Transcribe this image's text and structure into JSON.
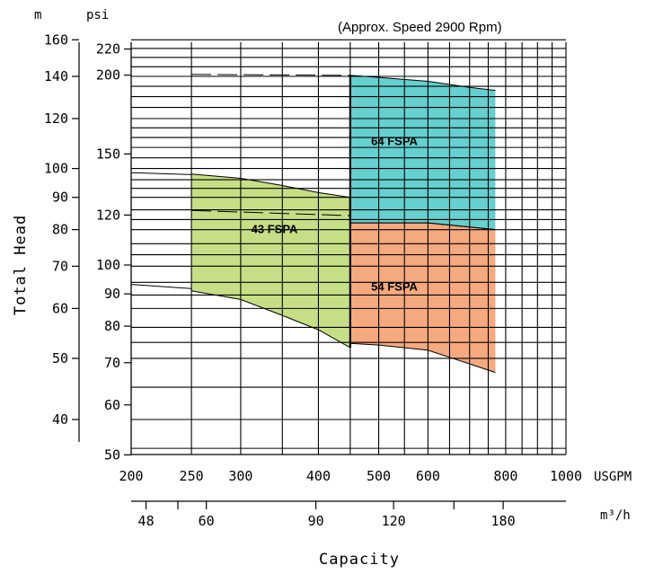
{
  "chart_data": {
    "type": "area",
    "note": "(Approx. Speed 2900 Rpm)",
    "xlabel": "Capacity",
    "ylabel": "Total Head",
    "x_unit_primary": "USGPM",
    "x_unit_secondary": "m³/h",
    "y_unit_primary": "m",
    "y_unit_secondary": "psi",
    "x_scale": "log",
    "y_scale": "log",
    "xlim": [
      200,
      1000
    ],
    "ylim_m": [
      35,
      160
    ],
    "grid": true,
    "x_ticks_usgpm": [
      {
        "value": 200,
        "label": "200"
      },
      {
        "value": 250,
        "label": "250"
      },
      {
        "value": 300,
        "label": "300"
      },
      {
        "value": 400,
        "label": "400"
      },
      {
        "value": 500,
        "label": "500"
      },
      {
        "value": 600,
        "label": "600"
      },
      {
        "value": 800,
        "label": "800"
      },
      {
        "value": 1000,
        "label": "1000"
      }
    ],
    "x_ticks_m3h": [
      {
        "value": 48,
        "label": "48"
      },
      {
        "value": 60,
        "label": "60"
      },
      {
        "value": 90,
        "label": "90"
      },
      {
        "value": 120,
        "label": "120"
      },
      {
        "value": 180,
        "label": "180"
      }
    ],
    "x_minor_m3h": [
      48,
      54,
      60,
      90,
      120,
      150,
      180
    ],
    "y_ticks_m": [
      {
        "value": 160,
        "label": "160"
      },
      {
        "value": 140,
        "label": "140"
      },
      {
        "value": 120,
        "label": "120"
      },
      {
        "value": 100,
        "label": "100"
      },
      {
        "value": 90,
        "label": "90"
      },
      {
        "value": 80,
        "label": "80"
      },
      {
        "value": 70,
        "label": "70"
      },
      {
        "value": 60,
        "label": "60"
      },
      {
        "value": 50,
        "label": "50"
      },
      {
        "value": 40,
        "label": "40"
      }
    ],
    "y_ticks_psi": [
      {
        "value": 220,
        "label": "220"
      },
      {
        "value": 200,
        "label": "200"
      },
      {
        "value": 150,
        "label": "150"
      },
      {
        "value": 120,
        "label": "120"
      },
      {
        "value": 100,
        "label": "100"
      },
      {
        "value": 90,
        "label": "90"
      },
      {
        "value": 80,
        "label": "80"
      },
      {
        "value": 70,
        "label": "70"
      },
      {
        "value": 60,
        "label": "60"
      },
      {
        "value": 50,
        "label": "50"
      }
    ],
    "x_grid_usgpm": [
      200,
      250,
      300,
      350,
      400,
      450,
      500,
      550,
      600,
      650,
      700,
      750,
      800,
      850,
      900,
      950,
      1000
    ],
    "y_grid_m": [
      36,
      40,
      45,
      50,
      53,
      56,
      60,
      63,
      66,
      70,
      73,
      76,
      80,
      83,
      86,
      90,
      93,
      96,
      100,
      104,
      108,
      112,
      116,
      120,
      125,
      130,
      135,
      140,
      145,
      150,
      155,
      160
    ],
    "regions": [
      {
        "name": "43 FSPA",
        "color": "#c6df86",
        "label_at": {
          "x": 340,
          "m": 79
        },
        "top": [
          [
            250,
            98
          ],
          [
            300,
            96.5
          ],
          [
            350,
            94
          ],
          [
            400,
            91.6
          ],
          [
            450,
            90
          ]
        ],
        "bottom": [
          [
            250,
            64
          ],
          [
            300,
            62
          ],
          [
            350,
            58.5
          ],
          [
            400,
            55.5
          ],
          [
            450,
            52
          ]
        ]
      },
      {
        "name": "64 FSPA",
        "color": "#66cfcf",
        "label_at": {
          "x": 530,
          "m": 109
        },
        "top": [
          [
            450,
            140.5
          ],
          [
            500,
            139.5
          ],
          [
            600,
            137.5
          ],
          [
            700,
            134.5
          ],
          [
            770,
            133
          ]
        ],
        "bottom": [
          [
            450,
            82
          ],
          [
            600,
            82
          ],
          [
            770,
            80
          ]
        ]
      },
      {
        "name": "54 FSPA",
        "color": "#f5a97e",
        "label_at": {
          "x": 530,
          "m": 64
        },
        "top": [
          [
            450,
            82
          ],
          [
            600,
            82
          ],
          [
            770,
            80
          ]
        ],
        "bottom": [
          [
            450,
            52.8
          ],
          [
            500,
            52.5
          ],
          [
            600,
            51.5
          ],
          [
            700,
            49
          ],
          [
            770,
            47.5
          ]
        ]
      }
    ],
    "outline_450": [
      52,
      90,
      82,
      140.5
    ],
    "extension_lines": [
      {
        "from": [
          200,
          98.5
        ],
        "to": [
          250,
          97.8
        ],
        "style": "solid"
      },
      {
        "from": [
          200,
          65.5
        ],
        "to": [
          250,
          64.5
        ],
        "style": "solid"
      },
      {
        "from": [
          250,
          85.8
        ],
        "to": [
          450,
          84.2
        ],
        "style": "dashed"
      },
      {
        "from": [
          250,
          141
        ],
        "to": [
          450,
          140.5
        ],
        "style": "dashed"
      }
    ]
  }
}
